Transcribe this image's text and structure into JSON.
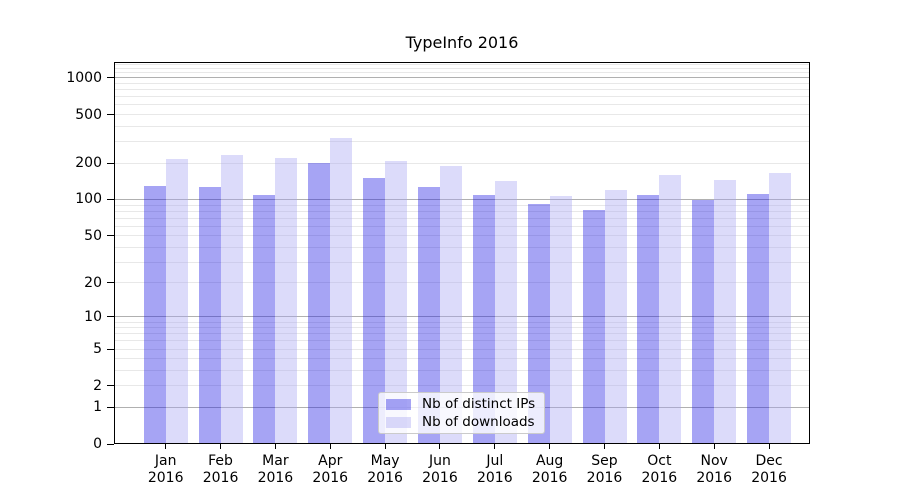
{
  "chart_data": {
    "type": "bar",
    "title": "TypeInfo 2016",
    "categories": [
      "Jan 2016",
      "Feb 2016",
      "Mar 2016",
      "Apr 2016",
      "May 2016",
      "Jun 2016",
      "Jul 2016",
      "Aug 2016",
      "Sep 2016",
      "Oct 2016",
      "Nov 2016",
      "Dec 2016"
    ],
    "x_tick_months": [
      "Jan",
      "Feb",
      "Mar",
      "Apr",
      "May",
      "Jun",
      "Jul",
      "Aug",
      "Sep",
      "Oct",
      "Nov",
      "Dec"
    ],
    "x_tick_year": "2016",
    "series": [
      {
        "name": "Nb of distinct IPs",
        "color": "rgba(33,28,228,0.4)",
        "values": [
          130,
          127,
          109,
          201,
          151,
          128,
          109,
          91,
          82,
          109,
          100,
          110
        ]
      },
      {
        "name": "Nb of downloads",
        "color": "rgba(168,165,243,0.4)",
        "values": [
          216,
          232,
          219,
          320,
          209,
          190,
          143,
          107,
          120,
          160,
          145,
          165
        ]
      }
    ],
    "y_axis": {
      "scale": "symlog",
      "tick_values": [
        0,
        1,
        2,
        5,
        10,
        20,
        50,
        100,
        200,
        500,
        1000
      ],
      "tick_labels": [
        "0",
        "1",
        "2",
        "5",
        "10",
        "20",
        "50",
        "100",
        "200",
        "500",
        "1000"
      ],
      "ylim": [
        0,
        1352
      ]
    },
    "grid": {
      "major_values": [
        1,
        10,
        100,
        1000
      ],
      "minor_values": [
        2,
        3,
        4,
        5,
        6,
        7,
        8,
        9,
        20,
        30,
        40,
        50,
        60,
        70,
        80,
        90,
        200,
        300,
        400,
        500,
        600,
        700,
        800,
        900,
        1100,
        1200,
        1300
      ],
      "major_color": "#b0b0b0",
      "minor_color": "#e8e8e8"
    },
    "legend": {
      "position": "lower center",
      "entries": [
        "Nb of distinct IPs",
        "Nb of downloads"
      ]
    }
  }
}
